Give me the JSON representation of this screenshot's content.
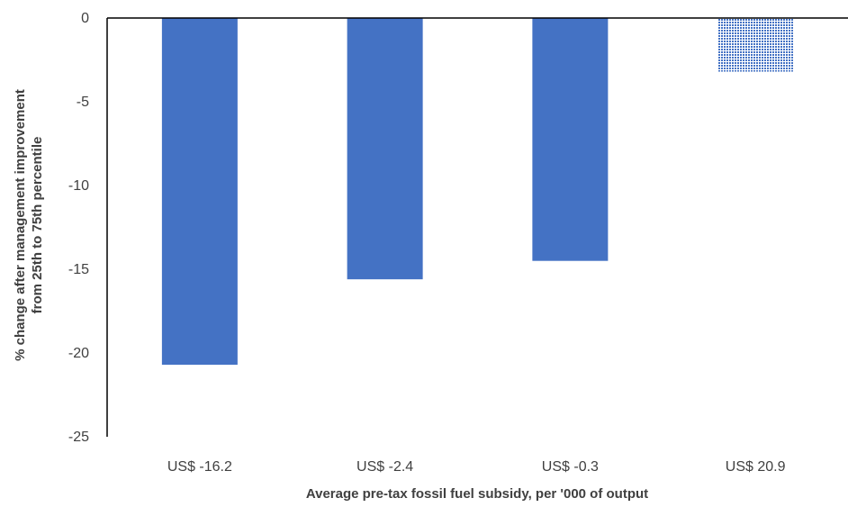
{
  "chart_data": {
    "type": "bar",
    "title": "",
    "categories": [
      "US$ -16.2",
      "US$ -2.4",
      "US$ -0.3",
      "US$ 20.9"
    ],
    "values": [
      -20.7,
      -15.6,
      -14.5,
      -3.2
    ],
    "bar_fills": [
      "solid",
      "solid",
      "solid",
      "dotted-pattern"
    ],
    "ylim": [
      -25,
      0
    ],
    "yticks": [
      0,
      -5,
      -10,
      -15,
      -20,
      -25
    ],
    "ytick_labels": [
      "0",
      "-5",
      "-10",
      "-15",
      "-20",
      "-25"
    ],
    "xlabel": "Average pre-tax fossil fuel subsidy,  per '000 of output",
    "ylabel_lines": [
      "% change after management improvement",
      "from 25th to 75th percentile"
    ],
    "grid": false,
    "legend": "none",
    "colors": {
      "bar": "#4472C4",
      "axis": "#000000",
      "text": "#404040"
    }
  }
}
